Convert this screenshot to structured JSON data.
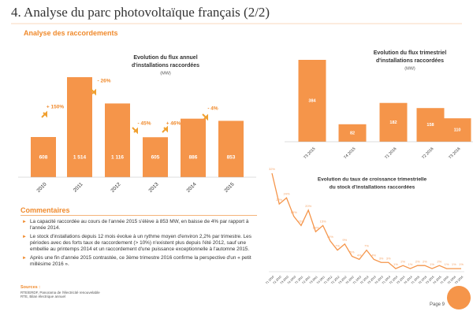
{
  "header": {
    "title": "4. Analyse du parc photovoltaïque français (2/2)",
    "subtitle": "Analyse des raccordements"
  },
  "chart_data": [
    {
      "type": "bar",
      "title": "Evolution du flux annuel",
      "title2": "d'installations raccordées",
      "unit": "(MW)",
      "categories": [
        "2010",
        "2011",
        "2012",
        "2013",
        "2014",
        "2015"
      ],
      "values": [
        608,
        1514,
        1116,
        605,
        886,
        853
      ],
      "value_labels": [
        "608",
        "1 514",
        "1 116",
        "605",
        "886",
        "853"
      ],
      "annotations": [
        "+ 150%",
        "- 26%",
        "- 45%",
        "+ 46%",
        "- 4%"
      ],
      "color": "#f5954a"
    },
    {
      "type": "bar",
      "title": "Evolution du flux trimestriel",
      "title2": "d'installations raccordées",
      "unit": "(MW)",
      "categories": [
        "T3 2015",
        "T4 2015",
        "T1 2016",
        "T2 2016",
        "T3 2016"
      ],
      "values": [
        384,
        82,
        182,
        158,
        110
      ],
      "color": "#f5954a"
    },
    {
      "type": "line",
      "title": "Evolution du taux de croissance trimestrielle",
      "title2": "du stock d'installations raccordées",
      "categories": [
        "T1 2010",
        "T2 2010",
        "T3 2010",
        "T4 2010",
        "T1 2011",
        "T2 2011",
        "T3 2011",
        "T4 2011",
        "T1 2012",
        "T2 2012",
        "T3 2012",
        "T4 2012",
        "T1 2013",
        "T2 2013",
        "T3 2013",
        "T4 2013",
        "T1 2014",
        "T2 2014",
        "T3 2014",
        "T4 2014",
        "T1 2015",
        "T2 2015",
        "T3 2015",
        "T4 2015",
        "T1 2016",
        "T2 2016",
        "T3 2016"
      ],
      "values": [
        32,
        22,
        24,
        18,
        15,
        20,
        13,
        15,
        10,
        7,
        9,
        5,
        4,
        7,
        4,
        3,
        3,
        1,
        2,
        1,
        2,
        2,
        1,
        2,
        1,
        1,
        1
      ],
      "value_labels": [
        "32%",
        "22%",
        "24%",
        "18%",
        "15%",
        "20%",
        "13%",
        "15%",
        "10%",
        "7%",
        "9%",
        "5%",
        "4%",
        "7%",
        "4%",
        "3%",
        "3%",
        "1%",
        "2%",
        "1%",
        "2%",
        "2%",
        "1%",
        "2%",
        "1%",
        "1%",
        "1%"
      ],
      "color": "#f5954a"
    }
  ],
  "comments": {
    "title": "Commentaires",
    "items": [
      "La capacité raccordée au cours de l'année 2015 s'élève à 853 MW, en baisse de 4% par rapport à l'année 2014.",
      "Le stock d'installations depuis 12 mois évolue à un rythme moyen d'environ 2,2% par trimestre. Les périodes avec des forts taux de raccordement (> 10%) n'existent plus depuis l'été 2012, sauf une embellie au printemps 2014 et un raccordement d'une puissance exceptionnelle à l'automne 2015.",
      "Après une fin d'année 2015 contrastée, ce 3ème trimestre 2016 confirme la perspective d'un « petit millésime 2016 »."
    ]
  },
  "sources": {
    "title": "Sources :",
    "lines": [
      "RTE/ERDF, Panorama de l'électricité renouvelable",
      "RTE, Bilan électrique annuel"
    ]
  },
  "page": "Page 9"
}
